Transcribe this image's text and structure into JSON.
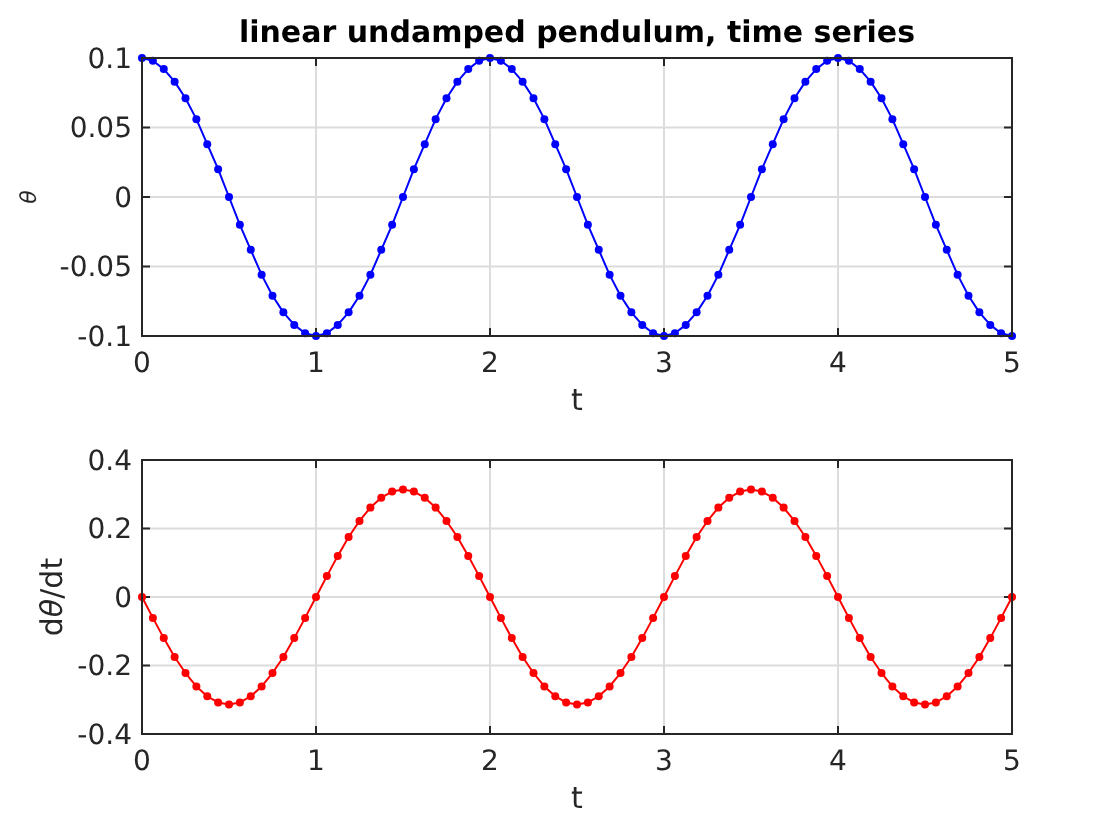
{
  "chart_data": [
    {
      "type": "line",
      "title": "linear undamped pendulum, time series",
      "xlabel": "t",
      "ylabel": "θ",
      "marker": "circle",
      "grid": true,
      "xlim": [
        0,
        5
      ],
      "ylim": [
        -0.1,
        0.1
      ],
      "xticks": [
        0,
        1,
        2,
        3,
        4,
        5
      ],
      "yticks": [
        -0.1,
        -0.05,
        0,
        0.05,
        0.1
      ],
      "x": [
        0,
        0.0625,
        0.125,
        0.1875,
        0.25,
        0.3125,
        0.375,
        0.4375,
        0.5,
        0.5625,
        0.625,
        0.6875,
        0.75,
        0.8125,
        0.875,
        0.9375,
        1,
        1.0625,
        1.125,
        1.1875,
        1.25,
        1.3125,
        1.375,
        1.4375,
        1.5,
        1.5625,
        1.625,
        1.6875,
        1.75,
        1.8125,
        1.875,
        1.9375,
        2,
        2.0625,
        2.125,
        2.1875,
        2.25,
        2.3125,
        2.375,
        2.4375,
        2.5,
        2.5625,
        2.625,
        2.6875,
        2.75,
        2.8125,
        2.875,
        2.9375,
        3,
        3.0625,
        3.125,
        3.1875,
        3.25,
        3.3125,
        3.375,
        3.4375,
        3.5,
        3.5625,
        3.625,
        3.6875,
        3.75,
        3.8125,
        3.875,
        3.9375,
        4,
        4.0625,
        4.125,
        4.1875,
        4.25,
        4.3125,
        4.375,
        4.4375,
        4.5,
        4.5625,
        4.625,
        4.6875,
        4.75,
        4.8125,
        4.875,
        4.9375,
        5
      ],
      "series": [
        {
          "color": "#0000ff",
          "values": [
            0.1,
            0.098,
            0.092,
            0.083,
            0.071,
            0.056,
            0.038,
            0.02,
            0,
            -0.02,
            -0.038,
            -0.056,
            -0.071,
            -0.083,
            -0.092,
            -0.098,
            -0.1,
            -0.098,
            -0.092,
            -0.083,
            -0.071,
            -0.056,
            -0.038,
            -0.02,
            0,
            0.02,
            0.038,
            0.056,
            0.071,
            0.083,
            0.092,
            0.098,
            0.1,
            0.098,
            0.092,
            0.083,
            0.071,
            0.056,
            0.038,
            0.02,
            0,
            -0.02,
            -0.038,
            -0.056,
            -0.071,
            -0.083,
            -0.092,
            -0.098,
            -0.1,
            -0.098,
            -0.092,
            -0.083,
            -0.071,
            -0.056,
            -0.038,
            -0.02,
            0,
            0.02,
            0.038,
            0.056,
            0.071,
            0.083,
            0.092,
            0.098,
            0.1,
            0.098,
            0.092,
            0.083,
            0.071,
            0.056,
            0.038,
            0.02,
            0,
            -0.02,
            -0.038,
            -0.056,
            -0.071,
            -0.083,
            -0.092,
            -0.098,
            -0.1
          ]
        }
      ]
    },
    {
      "type": "line",
      "xlabel": "t",
      "ylabel": "dθ/dt",
      "marker": "circle",
      "grid": true,
      "xlim": [
        0,
        5
      ],
      "ylim": [
        -0.4,
        0.4
      ],
      "xticks": [
        0,
        1,
        2,
        3,
        4,
        5
      ],
      "yticks": [
        -0.4,
        -0.2,
        0,
        0.2,
        0.4
      ],
      "x": [
        0,
        0.0625,
        0.125,
        0.1875,
        0.25,
        0.3125,
        0.375,
        0.4375,
        0.5,
        0.5625,
        0.625,
        0.6875,
        0.75,
        0.8125,
        0.875,
        0.9375,
        1,
        1.0625,
        1.125,
        1.1875,
        1.25,
        1.3125,
        1.375,
        1.4375,
        1.5,
        1.5625,
        1.625,
        1.6875,
        1.75,
        1.8125,
        1.875,
        1.9375,
        2,
        2.0625,
        2.125,
        2.1875,
        2.25,
        2.3125,
        2.375,
        2.4375,
        2.5,
        2.5625,
        2.625,
        2.6875,
        2.75,
        2.8125,
        2.875,
        2.9375,
        3,
        3.0625,
        3.125,
        3.1875,
        3.25,
        3.3125,
        3.375,
        3.4375,
        3.5,
        3.5625,
        3.625,
        3.6875,
        3.75,
        3.8125,
        3.875,
        3.9375,
        4,
        4.0625,
        4.125,
        4.1875,
        4.25,
        4.3125,
        4.375,
        4.4375,
        4.5,
        4.5625,
        4.625,
        4.6875,
        4.75,
        4.8125,
        4.875,
        4.9375,
        5
      ],
      "series": [
        {
          "color": "#ff0000",
          "values": [
            0,
            -0.061,
            -0.12,
            -0.175,
            -0.222,
            -0.261,
            -0.29,
            -0.308,
            -0.314,
            -0.308,
            -0.29,
            -0.261,
            -0.222,
            -0.175,
            -0.12,
            -0.061,
            0,
            0.061,
            0.12,
            0.175,
            0.222,
            0.261,
            0.29,
            0.308,
            0.314,
            0.308,
            0.29,
            0.261,
            0.222,
            0.175,
            0.12,
            0.061,
            0,
            -0.061,
            -0.12,
            -0.175,
            -0.222,
            -0.261,
            -0.29,
            -0.308,
            -0.314,
            -0.308,
            -0.29,
            -0.261,
            -0.222,
            -0.175,
            -0.12,
            -0.061,
            0,
            0.061,
            0.12,
            0.175,
            0.222,
            0.261,
            0.29,
            0.308,
            0.314,
            0.308,
            0.29,
            0.261,
            0.222,
            0.175,
            0.12,
            0.061,
            0,
            -0.061,
            -0.12,
            -0.175,
            -0.222,
            -0.261,
            -0.29,
            -0.308,
            -0.314,
            -0.308,
            -0.29,
            -0.261,
            -0.222,
            -0.175,
            -0.12,
            -0.061,
            0
          ]
        }
      ]
    }
  ]
}
